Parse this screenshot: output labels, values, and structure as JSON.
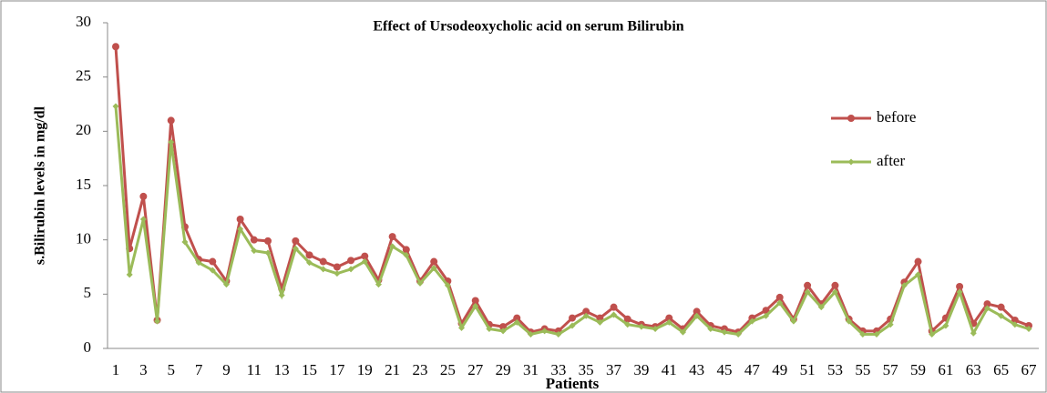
{
  "chart_data": {
    "type": "line",
    "title": "Effect of Ursodeoxycholic acid on serum Bilirubin",
    "y_label": "s.Bilirubin levels in mg/dl",
    "x_label": "Patients",
    "categories": [
      1,
      null,
      3,
      null,
      5,
      null,
      7,
      null,
      9,
      null,
      11,
      null,
      13,
      null,
      15,
      null,
      17,
      null,
      19,
      null,
      21,
      null,
      23,
      null,
      25,
      null,
      27,
      null,
      29,
      null,
      31,
      null,
      33,
      null,
      35,
      null,
      37,
      null,
      39,
      null,
      41,
      null,
      43,
      null,
      45,
      null,
      47,
      null,
      49,
      null,
      51,
      null,
      53,
      null,
      55,
      null,
      57,
      null,
      59,
      null,
      61,
      null,
      63,
      null,
      65,
      null,
      67
    ],
    "series": [
      {
        "name": "before",
        "color": "#c0504d",
        "marker": "circle",
        "values": [
          27.8,
          9.2,
          14.0,
          2.6,
          21.0,
          11.2,
          8.2,
          8.0,
          6.2,
          11.9,
          10.0,
          9.9,
          5.5,
          9.9,
          8.6,
          8.0,
          7.5,
          8.1,
          8.5,
          6.3,
          10.3,
          9.1,
          6.2,
          8.0,
          6.2,
          2.3,
          4.4,
          2.2,
          2.0,
          2.8,
          1.5,
          1.8,
          1.6,
          2.8,
          3.4,
          2.8,
          3.8,
          2.7,
          2.2,
          2.0,
          2.8,
          1.8,
          3.4,
          2.1,
          1.8,
          1.5,
          2.8,
          3.5,
          4.7,
          2.7,
          5.8,
          4.1,
          5.8,
          2.7,
          1.6,
          1.6,
          2.7,
          6.1,
          8.0,
          1.6,
          2.8,
          5.7,
          2.3,
          4.1,
          3.8,
          2.6,
          2.1
        ]
      },
      {
        "name": "after",
        "color": "#9bbb59",
        "marker": "diamond",
        "values": [
          22.3,
          6.8,
          11.9,
          2.5,
          19.0,
          9.8,
          7.9,
          7.2,
          5.9,
          11.0,
          9.0,
          8.8,
          4.9,
          9.2,
          7.9,
          7.3,
          6.9,
          7.3,
          8.0,
          5.9,
          9.4,
          8.6,
          6.0,
          7.4,
          5.8,
          1.9,
          3.9,
          1.8,
          1.6,
          2.4,
          1.3,
          1.6,
          1.3,
          2.1,
          3.0,
          2.4,
          3.1,
          2.2,
          2.0,
          1.8,
          2.4,
          1.5,
          3.0,
          1.8,
          1.5,
          1.3,
          2.5,
          3.0,
          4.2,
          2.5,
          5.2,
          3.8,
          5.2,
          2.5,
          1.3,
          1.3,
          2.2,
          5.8,
          6.8,
          1.3,
          2.1,
          5.2,
          1.4,
          3.7,
          3.0,
          2.2,
          1.8
        ]
      }
    ],
    "ylim": [
      0,
      30
    ],
    "yticks": [
      0,
      5,
      10,
      15,
      20,
      25,
      30
    ],
    "grid": false,
    "legend": "right"
  }
}
